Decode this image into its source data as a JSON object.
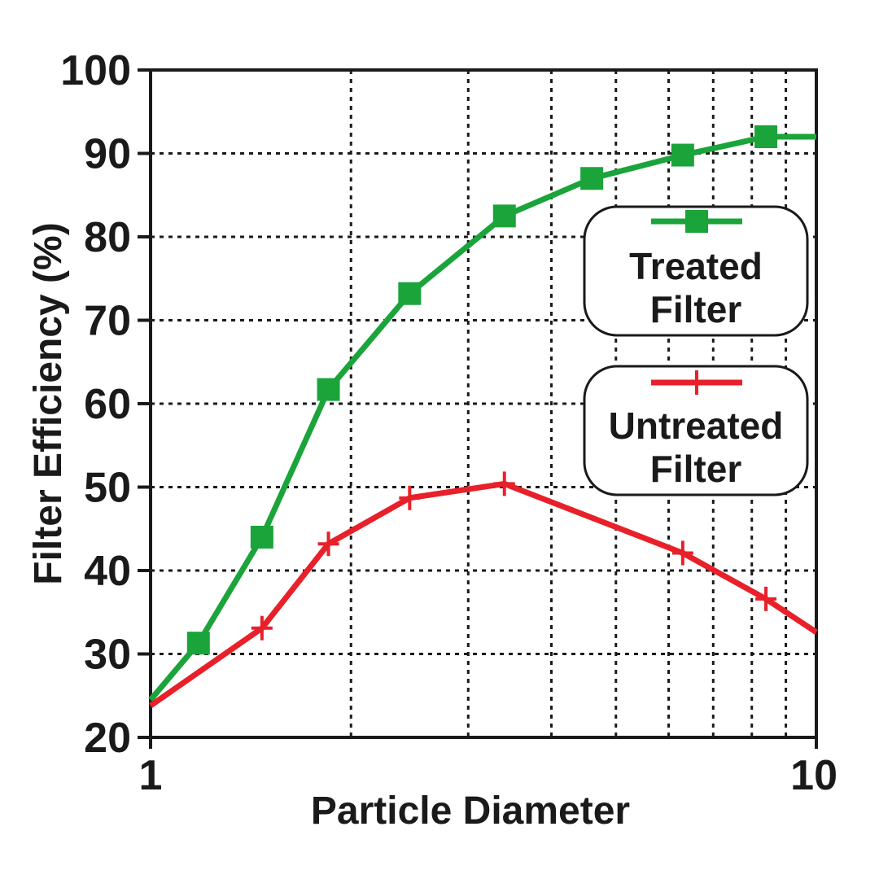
{
  "chart_data": {
    "type": "line",
    "xlabel": "Particle Diameter",
    "ylabel": "Filter Efficiency (%)",
    "xscale": "log",
    "xlim": [
      1,
      10
    ],
    "ylim": [
      20,
      100
    ],
    "x_ticks": [
      "1",
      "10"
    ],
    "y_ticks": [
      "20",
      "30",
      "40",
      "50",
      "60",
      "70",
      "80",
      "90",
      "100"
    ],
    "grid": true,
    "legend_position": "right",
    "series": [
      {
        "name": "Treated Filter",
        "color": "#1aa43a",
        "marker": "square",
        "x": [
          1.0,
          1.18,
          1.47,
          1.85,
          2.45,
          3.4,
          4.6,
          6.3,
          8.4,
          10.0
        ],
        "y": [
          24.5,
          31.3,
          44.0,
          61.7,
          73.2,
          82.5,
          87.0,
          89.8,
          92.0,
          92.0
        ],
        "marker_x": [
          1.18,
          1.47,
          1.85,
          2.45,
          3.4,
          4.6,
          6.3,
          8.4
        ]
      },
      {
        "name": "Untreated Filter",
        "color": "#e8202a",
        "marker": "plus",
        "x": [
          1.0,
          1.47,
          1.85,
          2.45,
          3.4,
          6.3,
          8.4,
          10.0
        ],
        "y": [
          23.8,
          33.1,
          43.2,
          48.7,
          50.4,
          42.1,
          36.6,
          32.6
        ],
        "marker_x": [
          1.47,
          1.85,
          2.45,
          3.4,
          6.3,
          8.4
        ]
      }
    ],
    "legend": [
      {
        "lines": [
          "Treated",
          "Filter"
        ]
      },
      {
        "lines": [
          "Untreated",
          "Filter"
        ]
      }
    ]
  }
}
